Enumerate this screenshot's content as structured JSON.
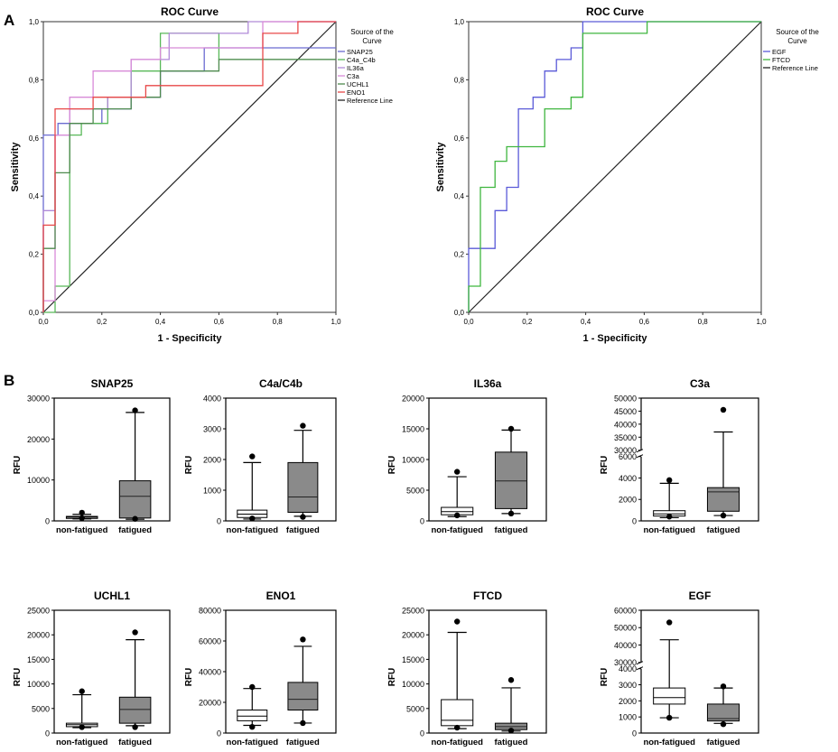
{
  "panel_labels": [
    "A",
    "B"
  ],
  "colors": {
    "SNAP25": "#6b6bd1",
    "C4a_C4b": "#58b858",
    "IL36a": "#b08ad8",
    "C3a": "#d88ad8",
    "UCHL1": "#4e8a4e",
    "ENO1": "#e84848",
    "EGF": "#5a5ad8",
    "FTCD": "#3fb63f",
    "reference": "#222222",
    "box_nonfatigued": "#ffffff",
    "box_fatigued": "#8a8a8a"
  },
  "chart_data": [
    {
      "type": "line",
      "title": "ROC Curve",
      "xlabel": "1 - Specificity",
      "ylabel": "Sensitivity",
      "xlim": [
        0,
        1
      ],
      "ylim": [
        0,
        1
      ],
      "xticks": [
        "0,0",
        "0,2",
        "0,4",
        "0,6",
        "0,8",
        "1,0"
      ],
      "yticks": [
        "0,0",
        "0,2",
        "0,4",
        "0,6",
        "0,8",
        "1,0"
      ],
      "legend_title": [
        "Source of the",
        "Curve"
      ],
      "series": [
        {
          "name": "SNAP25",
          "color_key": "SNAP25",
          "x": [
            0,
            0,
            0.05,
            0.05,
            0.2,
            0.2,
            0.3,
            0.3,
            0.4,
            0.4,
            0.55,
            0.55,
            1.0
          ],
          "y": [
            0,
            0.61,
            0.61,
            0.65,
            0.65,
            0.7,
            0.7,
            0.74,
            0.74,
            0.83,
            0.83,
            0.91,
            0.91
          ]
        },
        {
          "name": "C4a_C4b",
          "color_key": "C4a_C4b",
          "x": [
            0,
            0.04,
            0.04,
            0.09,
            0.09,
            0.13,
            0.13,
            0.22,
            0.22,
            0.3,
            0.3,
            0.4,
            0.4,
            0.6,
            0.6,
            0.9,
            0.9,
            1.0
          ],
          "y": [
            0,
            0,
            0.09,
            0.09,
            0.61,
            0.61,
            0.65,
            0.65,
            0.74,
            0.74,
            0.83,
            0.83,
            0.96,
            0.96,
            0.87,
            0.87,
            0.87,
            0.87
          ]
        },
        {
          "name": "IL36a",
          "color_key": "IL36a",
          "x": [
            0,
            0,
            0.04,
            0.04,
            0.09,
            0.09,
            0.22,
            0.22,
            0.3,
            0.3,
            0.43,
            0.43,
            0.7,
            0.7,
            0.87,
            0.87,
            1.0
          ],
          "y": [
            0,
            0.35,
            0.35,
            0.61,
            0.61,
            0.7,
            0.7,
            0.74,
            0.74,
            0.87,
            0.87,
            0.96,
            0.96,
            1.0,
            1.0,
            1.0,
            1.0
          ]
        },
        {
          "name": "C3a",
          "color_key": "C3a",
          "x": [
            0,
            0,
            0.04,
            0.04,
            0.09,
            0.09,
            0.17,
            0.17,
            0.26,
            0.26,
            0.3,
            0.3,
            0.4,
            0.4,
            0.75,
            0.75,
            1.0
          ],
          "y": [
            0,
            0.04,
            0.04,
            0.61,
            0.61,
            0.74,
            0.74,
            0.83,
            0.83,
            0.83,
            0.83,
            0.87,
            0.87,
            0.91,
            0.91,
            1.0,
            1.0
          ]
        },
        {
          "name": "UCHL1",
          "color_key": "UCHL1",
          "x": [
            0,
            0,
            0.04,
            0.04,
            0.09,
            0.09,
            0.17,
            0.17,
            0.3,
            0.3,
            0.4,
            0.4,
            0.6,
            0.6,
            0.75,
            0.75,
            1.0
          ],
          "y": [
            0,
            0.22,
            0.22,
            0.48,
            0.48,
            0.65,
            0.65,
            0.7,
            0.7,
            0.74,
            0.74,
            0.83,
            0.83,
            0.87,
            0.87,
            0.87,
            0.87
          ]
        },
        {
          "name": "ENO1",
          "color_key": "ENO1",
          "x": [
            0,
            0,
            0.04,
            0.04,
            0.09,
            0.09,
            0.17,
            0.17,
            0.35,
            0.35,
            0.5,
            0.5,
            0.75,
            0.75,
            0.87,
            0.87,
            1.0
          ],
          "y": [
            0,
            0.3,
            0.3,
            0.7,
            0.7,
            0.7,
            0.7,
            0.74,
            0.74,
            0.78,
            0.78,
            0.78,
            0.78,
            0.96,
            0.96,
            1.0,
            1.0
          ]
        }
      ],
      "reference_line": {
        "name": "Reference Line",
        "x": [
          0,
          1
        ],
        "y": [
          0,
          1
        ]
      }
    },
    {
      "type": "line",
      "title": "ROC Curve",
      "xlabel": "1 - Specificity",
      "ylabel": "Sensitivity",
      "xlim": [
        0,
        1
      ],
      "ylim": [
        0,
        1
      ],
      "xticks": [
        "0,0",
        "0,2",
        "0,4",
        "0,6",
        "0,8",
        "1,0"
      ],
      "yticks": [
        "0,0",
        "0,2",
        "0,4",
        "0,6",
        "0,8",
        "1,0"
      ],
      "legend_title": [
        "Source of the",
        "Curve"
      ],
      "series": [
        {
          "name": "EGF",
          "color_key": "EGF",
          "x": [
            0,
            0,
            0.09,
            0.09,
            0.13,
            0.13,
            0.17,
            0.17,
            0.22,
            0.22,
            0.26,
            0.26,
            0.3,
            0.3,
            0.35,
            0.35,
            0.39,
            0.39,
            1.0
          ],
          "y": [
            0,
            0.22,
            0.22,
            0.35,
            0.35,
            0.43,
            0.43,
            0.7,
            0.7,
            0.74,
            0.74,
            0.83,
            0.83,
            0.87,
            0.87,
            0.91,
            0.91,
            1.0,
            1.0
          ]
        },
        {
          "name": "FTCD",
          "color_key": "FTCD",
          "x": [
            0,
            0,
            0.04,
            0.04,
            0.09,
            0.09,
            0.13,
            0.13,
            0.26,
            0.26,
            0.35,
            0.35,
            0.39,
            0.39,
            0.61,
            0.61,
            1.0
          ],
          "y": [
            0,
            0.09,
            0.09,
            0.43,
            0.43,
            0.52,
            0.52,
            0.57,
            0.57,
            0.7,
            0.7,
            0.74,
            0.74,
            0.96,
            0.96,
            1.0,
            1.0
          ]
        }
      ],
      "reference_line": {
        "name": "Reference Line",
        "x": [
          0,
          1
        ],
        "y": [
          0,
          1
        ]
      }
    },
    {
      "type": "box",
      "title": "SNAP25",
      "ylabel": "RFU",
      "categories": [
        "non-fatigued",
        "fatigued"
      ],
      "ylim": [
        0,
        30000
      ],
      "yticks": [
        0,
        10000,
        20000,
        30000
      ],
      "series": [
        {
          "name": "non-fatigued",
          "whisker_low": 500,
          "q1": 600,
          "median": 900,
          "q3": 1100,
          "whisker_high": 1600,
          "outliers": [
            700,
            2000
          ]
        },
        {
          "name": "fatigued",
          "whisker_low": 400,
          "q1": 700,
          "median": 6000,
          "q3": 9800,
          "whisker_high": 26500,
          "outliers": [
            500,
            27000
          ]
        }
      ]
    },
    {
      "type": "box",
      "title": "C4a/C4b",
      "ylabel": "RFU",
      "categories": [
        "non-fatigued",
        "fatigued"
      ],
      "ylim": [
        0,
        4000
      ],
      "yticks": [
        0,
        1000,
        2000,
        3000,
        4000
      ],
      "series": [
        {
          "name": "non-fatigued",
          "whisker_low": 60,
          "q1": 110,
          "median": 220,
          "q3": 350,
          "whisker_high": 1900,
          "outliers": [
            80,
            2100
          ]
        },
        {
          "name": "fatigued",
          "whisker_low": 150,
          "q1": 280,
          "median": 780,
          "q3": 1900,
          "whisker_high": 2950,
          "outliers": [
            130,
            3100
          ]
        }
      ]
    },
    {
      "type": "box",
      "title": "IL36a",
      "ylabel": "RFU",
      "categories": [
        "non-fatigued",
        "fatigued"
      ],
      "ylim": [
        0,
        20000
      ],
      "yticks": [
        0,
        5000,
        10000,
        15000,
        20000
      ],
      "series": [
        {
          "name": "non-fatigued",
          "whisker_low": 700,
          "q1": 1000,
          "median": 1500,
          "q3": 2200,
          "whisker_high": 7200,
          "outliers": [
            900,
            8000
          ]
        },
        {
          "name": "fatigued",
          "whisker_low": 1200,
          "q1": 2000,
          "median": 6500,
          "q3": 11200,
          "whisker_high": 14800,
          "outliers": [
            1200,
            15000
          ]
        }
      ]
    },
    {
      "type": "box",
      "title": "C3a",
      "ylabel": "RFU",
      "categories": [
        "non-fatigued",
        "fatigued"
      ],
      "y_axis_break": {
        "lower_range": [
          0,
          6000
        ],
        "upper_range": [
          30000,
          50000
        ]
      },
      "yticks": [
        0,
        2000,
        4000,
        6000,
        30000,
        35000,
        40000,
        45000,
        50000
      ],
      "series": [
        {
          "name": "non-fatigued",
          "whisker_low": 300,
          "q1": 450,
          "median": 650,
          "q3": 950,
          "whisker_high": 3500,
          "outliers": [
            400,
            3800
          ]
        },
        {
          "name": "fatigued",
          "whisker_low": 500,
          "q1": 900,
          "median": 2700,
          "q3": 3100,
          "whisker_high": 37000,
          "outliers": [
            500,
            45500
          ]
        }
      ]
    },
    {
      "type": "box",
      "title": "UCHL1",
      "ylabel": "RFU",
      "categories": [
        "non-fatigued",
        "fatigued"
      ],
      "ylim": [
        0,
        25000
      ],
      "yticks": [
        0,
        5000,
        10000,
        15000,
        20000,
        25000
      ],
      "series": [
        {
          "name": "non-fatigued",
          "whisker_low": 1100,
          "q1": 1300,
          "median": 1700,
          "q3": 2000,
          "whisker_high": 7800,
          "outliers": [
            1200,
            8500
          ]
        },
        {
          "name": "fatigued",
          "whisker_low": 1500,
          "q1": 2000,
          "median": 4800,
          "q3": 7300,
          "whisker_high": 19000,
          "outliers": [
            1200,
            20500
          ]
        }
      ]
    },
    {
      "type": "box",
      "title": "ENO1",
      "ylabel": "RFU",
      "categories": [
        "non-fatigued",
        "fatigued"
      ],
      "ylim": [
        0,
        80000
      ],
      "yticks": [
        0,
        20000,
        40000,
        60000,
        80000
      ],
      "series": [
        {
          "name": "non-fatigued",
          "whisker_low": 5000,
          "q1": 8000,
          "median": 11000,
          "q3": 15000,
          "whisker_high": 29000,
          "outliers": [
            4000,
            30000
          ]
        },
        {
          "name": "fatigued",
          "whisker_low": 6500,
          "q1": 15000,
          "median": 22000,
          "q3": 33000,
          "whisker_high": 56500,
          "outliers": [
            6500,
            61000
          ]
        }
      ]
    },
    {
      "type": "box",
      "title": "FTCD",
      "ylabel": "RFU",
      "categories": [
        "non-fatigued",
        "fatigued"
      ],
      "ylim": [
        0,
        25000
      ],
      "yticks": [
        0,
        5000,
        10000,
        15000,
        20000,
        25000
      ],
      "series": [
        {
          "name": "non-fatigued",
          "whisker_low": 900,
          "q1": 1500,
          "median": 2600,
          "q3": 6800,
          "whisker_high": 20500,
          "outliers": [
            1100,
            22700
          ]
        },
        {
          "name": "fatigued",
          "whisker_low": 400,
          "q1": 700,
          "median": 1300,
          "q3": 2000,
          "whisker_high": 9200,
          "outliers": [
            500,
            10800
          ]
        }
      ]
    },
    {
      "type": "box",
      "title": "EGF",
      "ylabel": "RFU",
      "categories": [
        "non-fatigued",
        "fatigued"
      ],
      "y_axis_break": {
        "lower_range": [
          0,
          4000
        ],
        "upper_range": [
          30000,
          60000
        ]
      },
      "yticks": [
        0,
        1000,
        2000,
        3000,
        4000,
        30000,
        40000,
        50000,
        60000
      ],
      "series": [
        {
          "name": "non-fatigued",
          "whisker_low": 950,
          "q1": 1800,
          "median": 2200,
          "q3": 2800,
          "whisker_high": 43000,
          "outliers": [
            950,
            53000
          ]
        },
        {
          "name": "fatigued",
          "whisker_low": 600,
          "q1": 750,
          "median": 900,
          "q3": 1800,
          "whisker_high": 2800,
          "outliers": [
            550,
            2900
          ]
        }
      ]
    }
  ]
}
